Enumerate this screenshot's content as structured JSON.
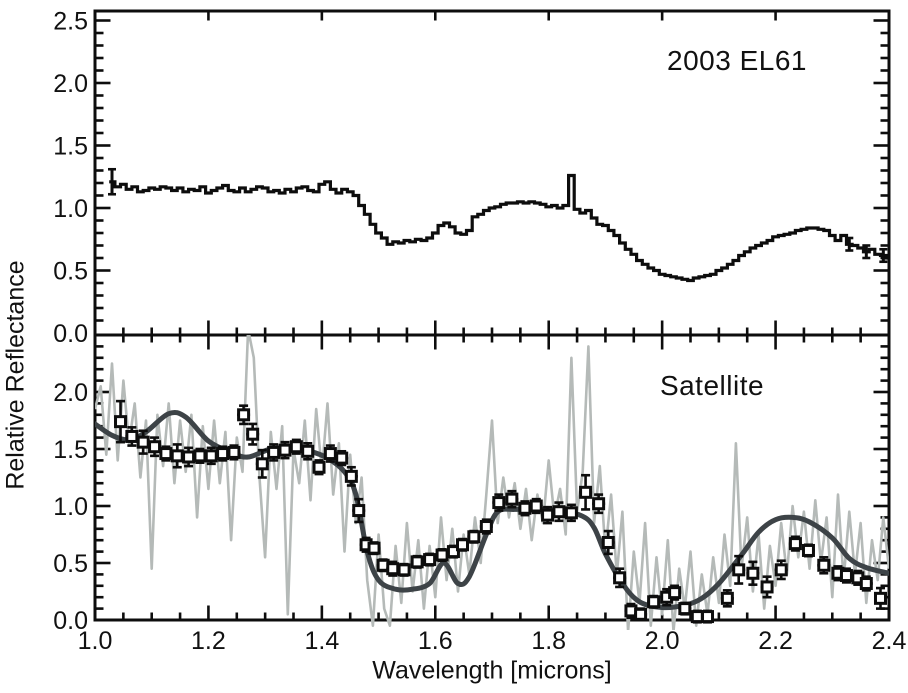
{
  "colors": {
    "black": "#0d0d0d",
    "raw_spectrum_gray": "#b5bab8",
    "model_dark_gray": "#3d4347",
    "marker_fill": "#ffffff"
  },
  "labels": {
    "x_axis": "Wavelength [microns]",
    "y_axis": "Relative Reflectance",
    "top_panel": "2003 EL61",
    "bottom_panel": "Satellite"
  },
  "chart_data": [
    {
      "type": "line",
      "panel": "top",
      "title": "2003 EL61",
      "xlabel": "Wavelength [microns]",
      "ylabel": "Relative Reflectance",
      "xlim": [
        1.0,
        2.4
      ],
      "ylim": [
        0.0,
        2.5
      ],
      "grid": false,
      "x_ticks": [
        1.0,
        1.2,
        1.4,
        1.6,
        1.8,
        2.0,
        2.2,
        2.4
      ],
      "x_minor_step": 0.05,
      "y_ticks": [
        0.0,
        0.5,
        1.0,
        1.5,
        2.0,
        2.5
      ],
      "y_tick_labels": [
        "0.0",
        "0.5",
        "1.0",
        "1.5",
        "2.0",
        "2.5"
      ],
      "y_minor_step": 0.1,
      "series": [
        {
          "name": "2003 EL61 reflectance spectrum",
          "style": "histogram-step",
          "color": "#0d0d0d",
          "x_start": 1.03,
          "x_step": 0.01,
          "values": [
            1.21,
            1.17,
            1.19,
            1.15,
            1.17,
            1.13,
            1.14,
            1.16,
            1.15,
            1.17,
            1.16,
            1.14,
            1.16,
            1.13,
            1.15,
            1.14,
            1.17,
            1.12,
            1.14,
            1.16,
            1.18,
            1.14,
            1.13,
            1.16,
            1.13,
            1.15,
            1.17,
            1.16,
            1.13,
            1.14,
            1.12,
            1.15,
            1.13,
            1.16,
            1.17,
            1.14,
            1.13,
            1.19,
            1.21,
            1.15,
            1.12,
            1.15,
            1.13,
            1.1,
            1.02,
            0.95,
            0.87,
            0.8,
            0.76,
            0.71,
            0.73,
            0.72,
            0.74,
            0.73,
            0.75,
            0.74,
            0.76,
            0.8,
            0.86,
            0.88,
            0.85,
            0.8,
            0.79,
            0.82,
            0.93,
            0.95,
            0.98,
            1.0,
            1.01,
            1.03,
            1.04,
            1.04,
            1.05,
            1.04,
            1.05,
            1.04,
            1.03,
            1.01,
            1.02,
            1.0,
            1.02,
            1.26,
            0.99,
            0.96,
            0.98,
            0.92,
            0.87,
            0.86,
            0.82,
            0.78,
            0.72,
            0.67,
            0.63,
            0.58,
            0.55,
            0.52,
            0.5,
            0.47,
            0.46,
            0.45,
            0.44,
            0.43,
            0.42,
            0.44,
            0.45,
            0.46,
            0.47,
            0.5,
            0.52,
            0.55,
            0.58,
            0.62,
            0.65,
            0.68,
            0.7,
            0.72,
            0.74,
            0.77,
            0.78,
            0.79,
            0.8,
            0.82,
            0.83,
            0.84,
            0.84,
            0.83,
            0.82,
            0.78,
            0.74,
            0.78,
            0.71,
            0.7,
            0.68,
            0.65,
            0.67,
            0.63,
            0.62,
            0.6
          ],
          "error_bars": [
            [
              1.03,
              1.21,
              0.1
            ],
            [
              2.33,
              0.71,
              0.05
            ],
            [
              2.36,
              0.65,
              0.05
            ],
            [
              2.39,
              0.62,
              0.05
            ]
          ]
        }
      ]
    },
    {
      "type": "line",
      "panel": "bottom",
      "title": "Satellite",
      "xlabel": "Wavelength [microns]",
      "ylabel": "Relative Reflectance",
      "xlim": [
        1.0,
        2.4
      ],
      "ylim": [
        0.0,
        2.5
      ],
      "grid": false,
      "x_ticks": [
        1.0,
        1.2,
        1.4,
        1.6,
        1.8,
        2.0,
        2.2,
        2.4
      ],
      "x_tick_labels": [
        "1.0",
        "1.2",
        "1.4",
        "1.6",
        "1.8",
        "2.0",
        "2.2",
        "2.4"
      ],
      "x_minor_step": 0.05,
      "y_ticks": [
        0.0,
        0.5,
        1.0,
        1.5,
        2.0
      ],
      "y_tick_labels": [
        "0.0",
        "0.5",
        "1.0",
        "1.5",
        "2.0"
      ],
      "y_minor_step": 0.1,
      "series": [
        {
          "name": "satellite raw spectrum",
          "style": "noisy-line",
          "color": "#b5bab8",
          "x_start": 1.0,
          "x_step": 0.01,
          "values": [
            1.85,
            2.05,
            1.45,
            2.25,
            1.4,
            2.1,
            1.55,
            1.9,
            1.25,
            1.75,
            0.45,
            1.8,
            1.35,
            1.9,
            1.2,
            1.75,
            1.3,
            1.8,
            0.9,
            1.7,
            1.15,
            1.75,
            1.2,
            1.65,
            0.7,
            1.6,
            1.3,
            2.55,
            2.3,
            1.25,
            0.55,
            1.65,
            1.15,
            1.7,
            0.05,
            1.5,
            1.2,
            1.75,
            1.05,
            1.85,
            1.3,
            1.9,
            1.1,
            1.55,
            0.6,
            1.45,
            0.85,
            1.25,
            0.35,
            -0.05,
            0.75,
            0.1,
            -0.05,
            0.65,
            0.15,
            0.85,
            0.25,
            0.7,
            0.1,
            0.65,
            0.2,
            0.9,
            0.35,
            0.8,
            0.25,
            0.75,
            0.4,
            0.9,
            0.5,
            1.1,
            1.75,
            0.85,
            1.25,
            0.9,
            1.2,
            0.8,
            1.15,
            0.7,
            1.1,
            0.85,
            1.4,
            0.9,
            1.15,
            0.75,
            2.3,
            0.95,
            1.3,
            2.4,
            0.85,
            1.35,
            0.6,
            1.1,
            0.4,
            0.95,
            -0.1,
            0.6,
            0.15,
            0.85,
            -0.05,
            0.55,
            0.05,
            0.7,
            -0.1,
            0.45,
            0.1,
            0.6,
            -0.05,
            0.4,
            0.05,
            0.55,
            0.15,
            0.75,
            0.3,
            1.55,
            0.45,
            0.9,
            0.25,
            0.75,
            0.1,
            0.65,
            0.3,
            0.85,
            0.4,
            1.0,
            0.55,
            0.95,
            0.45,
            1.05,
            0.5,
            0.9,
            0.2,
            1.1,
            0.35,
            0.95,
            0.4,
            0.85,
            0.15,
            0.7,
            0.35,
            0.9,
            0.45
          ]
        },
        {
          "name": "satellite crystalline water ice model",
          "style": "smooth-line",
          "color": "#3d4347",
          "points": [
            [
              1.0,
              1.72
            ],
            [
              1.03,
              1.62
            ],
            [
              1.06,
              1.58
            ],
            [
              1.09,
              1.65
            ],
            [
              1.13,
              1.81
            ],
            [
              1.16,
              1.78
            ],
            [
              1.2,
              1.57
            ],
            [
              1.24,
              1.47
            ],
            [
              1.27,
              1.43
            ],
            [
              1.31,
              1.5
            ],
            [
              1.35,
              1.51
            ],
            [
              1.38,
              1.48
            ],
            [
              1.41,
              1.42
            ],
            [
              1.44,
              1.3
            ],
            [
              1.46,
              1.1
            ],
            [
              1.48,
              0.6
            ],
            [
              1.5,
              0.35
            ],
            [
              1.53,
              0.27
            ],
            [
              1.56,
              0.27
            ],
            [
              1.59,
              0.32
            ],
            [
              1.615,
              0.5
            ],
            [
              1.64,
              0.32
            ],
            [
              1.66,
              0.38
            ],
            [
              1.69,
              0.75
            ],
            [
              1.71,
              0.95
            ],
            [
              1.74,
              0.97
            ],
            [
              1.78,
              0.97
            ],
            [
              1.82,
              0.96
            ],
            [
              1.86,
              0.91
            ],
            [
              1.88,
              0.81
            ],
            [
              1.9,
              0.58
            ],
            [
              1.93,
              0.32
            ],
            [
              1.96,
              0.16
            ],
            [
              2.0,
              0.11
            ],
            [
              2.04,
              0.13
            ],
            [
              2.07,
              0.19
            ],
            [
              2.1,
              0.32
            ],
            [
              2.14,
              0.57
            ],
            [
              2.17,
              0.77
            ],
            [
              2.2,
              0.88
            ],
            [
              2.23,
              0.9
            ],
            [
              2.26,
              0.86
            ],
            [
              2.3,
              0.72
            ],
            [
              2.33,
              0.54
            ],
            [
              2.36,
              0.46
            ],
            [
              2.4,
              0.41
            ]
          ]
        },
        {
          "name": "satellite binned spectrum",
          "style": "squares-errorbars",
          "color": "#0d0d0d",
          "points": [
            [
              1.045,
              1.74,
              0.18
            ],
            [
              1.065,
              1.61,
              0.08
            ],
            [
              1.085,
              1.56,
              0.1
            ],
            [
              1.105,
              1.52,
              0.08
            ],
            [
              1.125,
              1.46,
              0.06
            ],
            [
              1.145,
              1.44,
              0.1
            ],
            [
              1.165,
              1.43,
              0.08
            ],
            [
              1.185,
              1.44,
              0.06
            ],
            [
              1.205,
              1.44,
              0.07
            ],
            [
              1.225,
              1.46,
              0.06
            ],
            [
              1.245,
              1.47,
              0.06
            ],
            [
              1.262,
              1.8,
              0.08
            ],
            [
              1.278,
              1.63,
              0.09
            ],
            [
              1.295,
              1.37,
              0.12
            ],
            [
              1.315,
              1.47,
              0.07
            ],
            [
              1.335,
              1.49,
              0.07
            ],
            [
              1.355,
              1.52,
              0.06
            ],
            [
              1.375,
              1.48,
              0.07
            ],
            [
              1.395,
              1.34,
              0.06
            ],
            [
              1.415,
              1.46,
              0.07
            ],
            [
              1.435,
              1.42,
              0.06
            ],
            [
              1.452,
              1.26,
              0.08
            ],
            [
              1.465,
              0.96,
              0.1
            ],
            [
              1.478,
              0.66,
              0.06
            ],
            [
              1.492,
              0.63,
              0.05
            ],
            [
              1.508,
              0.48,
              0.05
            ],
            [
              1.525,
              0.45,
              0.06
            ],
            [
              1.545,
              0.44,
              0.05
            ],
            [
              1.568,
              0.51,
              0.05
            ],
            [
              1.59,
              0.53,
              0.05
            ],
            [
              1.612,
              0.57,
              0.05
            ],
            [
              1.632,
              0.6,
              0.05
            ],
            [
              1.648,
              0.66,
              0.05
            ],
            [
              1.668,
              0.73,
              0.05
            ],
            [
              1.69,
              0.82,
              0.06
            ],
            [
              1.712,
              1.03,
              0.07
            ],
            [
              1.735,
              1.06,
              0.07
            ],
            [
              1.758,
              0.98,
              0.06
            ],
            [
              1.778,
              1.0,
              0.06
            ],
            [
              1.798,
              0.92,
              0.07
            ],
            [
              1.818,
              0.95,
              0.08
            ],
            [
              1.84,
              0.94,
              0.07
            ],
            [
              1.865,
              1.12,
              0.15
            ],
            [
              1.888,
              1.02,
              0.08
            ],
            [
              1.905,
              0.68,
              0.1
            ],
            [
              1.925,
              0.37,
              0.08
            ],
            [
              1.945,
              0.08,
              0.06
            ],
            [
              1.962,
              0.05,
              0.05
            ],
            [
              1.985,
              0.16,
              0.05
            ],
            [
              2.008,
              0.2,
              0.07
            ],
            [
              2.022,
              0.24,
              0.06
            ],
            [
              2.04,
              0.1,
              0.05
            ],
            [
              2.062,
              0.03,
              0.05
            ],
            [
              2.08,
              0.03,
              0.05
            ],
            [
              2.115,
              0.19,
              0.07
            ],
            [
              2.135,
              0.44,
              0.12
            ],
            [
              2.16,
              0.41,
              0.1
            ],
            [
              2.185,
              0.29,
              0.09
            ],
            [
              2.21,
              0.44,
              0.08
            ],
            [
              2.235,
              0.67,
              0.06
            ],
            [
              2.258,
              0.61,
              0.05
            ],
            [
              2.285,
              0.48,
              0.07
            ],
            [
              2.31,
              0.41,
              0.06
            ],
            [
              2.325,
              0.39,
              0.06
            ],
            [
              2.345,
              0.37,
              0.06
            ],
            [
              2.36,
              0.32,
              0.06
            ],
            [
              2.385,
              0.19,
              0.09
            ]
          ]
        }
      ]
    }
  ]
}
